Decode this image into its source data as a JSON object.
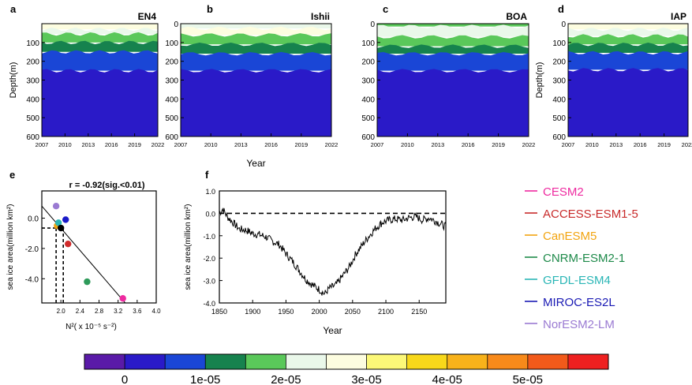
{
  "chart_data": [
    {
      "panel": "a",
      "type": "heatmap",
      "title": "EN4",
      "ylabel": "Depth(m)",
      "xlabel": "",
      "x_ticks": [
        "2007",
        "2010",
        "2013",
        "2016",
        "2019",
        "2022"
      ],
      "y_ticks": [
        "100",
        "200",
        "300",
        "400",
        "500",
        "600"
      ],
      "xlim": [
        2007,
        2022
      ],
      "ylim": [
        0,
        600
      ],
      "layers": [
        {
          "top": 0,
          "bottom": 30,
          "value": 2.5e-05
        },
        {
          "top": 30,
          "bottom": 55,
          "value": 2.2e-05
        },
        {
          "top": 55,
          "bottom": 100,
          "value": 1.8e-05
        },
        {
          "top": 100,
          "bottom": 150,
          "value": 1.2e-05
        },
        {
          "top": 150,
          "bottom": 250,
          "value": 8e-06
        },
        {
          "top": 250,
          "bottom": 600,
          "value": 4e-06
        }
      ]
    },
    {
      "panel": "b",
      "type": "heatmap",
      "title": "Ishii",
      "ylabel": "",
      "xlabel": "Year",
      "x_ticks": [
        "2007",
        "2010",
        "2013",
        "2016",
        "2019",
        "2022"
      ],
      "y_ticks": [
        "0",
        "100",
        "200",
        "300",
        "400",
        "500",
        "600"
      ],
      "xlim": [
        2007,
        2022
      ],
      "ylim": [
        0,
        600
      ],
      "layers": [
        {
          "top": 0,
          "bottom": 25,
          "value": 2.2e-05
        },
        {
          "top": 25,
          "bottom": 60,
          "value": 2.5e-05
        },
        {
          "top": 60,
          "bottom": 110,
          "value": 1.8e-05
        },
        {
          "top": 110,
          "bottom": 160,
          "value": 1.2e-05
        },
        {
          "top": 160,
          "bottom": 250,
          "value": 8e-06
        },
        {
          "top": 250,
          "bottom": 600,
          "value": 4e-06
        }
      ]
    },
    {
      "panel": "c",
      "type": "heatmap",
      "title": "BOA",
      "ylabel": "",
      "xlabel": "",
      "x_ticks": [
        "2007",
        "2010",
        "2013",
        "2016",
        "2019",
        "2022"
      ],
      "y_ticks": [
        "0",
        "100",
        "200",
        "300",
        "400",
        "500",
        "600"
      ],
      "xlim": [
        2007,
        2022
      ],
      "ylim": [
        0,
        600
      ],
      "layers": [
        {
          "top": 0,
          "bottom": 15,
          "value": 1.8e-05
        },
        {
          "top": 15,
          "bottom": 70,
          "value": 2.2e-05
        },
        {
          "top": 70,
          "bottom": 120,
          "value": 1.8e-05
        },
        {
          "top": 120,
          "bottom": 160,
          "value": 1.2e-05
        },
        {
          "top": 160,
          "bottom": 250,
          "value": 8e-06
        },
        {
          "top": 250,
          "bottom": 600,
          "value": 4e-06
        }
      ]
    },
    {
      "panel": "d",
      "type": "heatmap",
      "title": "IAP",
      "ylabel": "Depth(m)",
      "xlabel": "",
      "x_ticks": [
        "2007",
        "2010",
        "2013",
        "2016",
        "2019",
        "2022"
      ],
      "y_ticks": [
        "0",
        "100",
        "200",
        "300",
        "400",
        "500",
        "600"
      ],
      "xlim": [
        2007,
        2022
      ],
      "ylim": [
        0,
        600
      ],
      "layers": [
        {
          "top": 0,
          "bottom": 30,
          "value": 2.6e-05
        },
        {
          "top": 30,
          "bottom": 65,
          "value": 2.2e-05
        },
        {
          "top": 65,
          "bottom": 110,
          "value": 1.8e-05
        },
        {
          "top": 110,
          "bottom": 155,
          "value": 1.2e-05
        },
        {
          "top": 155,
          "bottom": 245,
          "value": 8e-06
        },
        {
          "top": 245,
          "bottom": 600,
          "value": 4e-06
        }
      ]
    },
    {
      "panel": "e",
      "type": "scatter",
      "title": "r = -0.92(sig.<0.01)",
      "xlabel": "N²( x 10⁻⁵ s⁻²)",
      "ylabel": "sea ice area(million km²)",
      "x_ticks": [
        "2.0",
        "2.4",
        "2.8",
        "3.2",
        "3.6",
        "4.0"
      ],
      "y_ticks": [
        "0.0",
        "-2.0",
        "-4.0"
      ],
      "xlim": [
        1.6,
        4.0
      ],
      "ylim": [
        -5.6,
        1.8
      ],
      "points": [
        {
          "x": 3.3,
          "y": -5.3,
          "color": "#ee2aa0"
        },
        {
          "x": 2.15,
          "y": -1.7,
          "color": "#d12a2a"
        },
        {
          "x": 1.92,
          "y": -0.5,
          "color": "#f2a410"
        },
        {
          "x": 2.55,
          "y": -4.2,
          "color": "#2e9a5a"
        },
        {
          "x": 1.95,
          "y": -0.3,
          "color": "#2ab6b6"
        },
        {
          "x": 2.1,
          "y": -0.1,
          "color": "#1a1ac8"
        },
        {
          "x": 1.9,
          "y": 0.8,
          "color": "#9a7ad2"
        },
        {
          "x": 2.0,
          "y": -0.65,
          "color": "#000000"
        }
      ],
      "fit_line": [
        [
          1.6,
          0.8
        ],
        [
          3.35,
          -5.6
        ]
      ],
      "obs_lines_x": [
        1.9,
        2.05
      ],
      "obs_line_y": -0.65
    },
    {
      "panel": "f",
      "type": "line",
      "title": "",
      "xlabel": "Year",
      "ylabel": "sea ice area(million km²)",
      "x_ticks": [
        "1850",
        "1900",
        "1950",
        "2000",
        "2050",
        "2100",
        "2150"
      ],
      "y_ticks": [
        "1.0",
        "0.0",
        "-1.0",
        "-2.0",
        "-3.0",
        "-4.0"
      ],
      "xlim": [
        1850,
        2190
      ],
      "ylim": [
        -4.0,
        1.0
      ],
      "key_points": [
        [
          1850,
          0.0
        ],
        [
          1855,
          0.2
        ],
        [
          1862,
          -0.15
        ],
        [
          1870,
          -0.4
        ],
        [
          1880,
          -0.7
        ],
        [
          1890,
          -0.75
        ],
        [
          1900,
          -0.9
        ],
        [
          1910,
          -0.95
        ],
        [
          1920,
          -1.05
        ],
        [
          1930,
          -1.25
        ],
        [
          1940,
          -1.4
        ],
        [
          1950,
          -1.8
        ],
        [
          1960,
          -2.15
        ],
        [
          1970,
          -2.55
        ],
        [
          1980,
          -2.95
        ],
        [
          1990,
          -3.2
        ],
        [
          2000,
          -3.4
        ],
        [
          2008,
          -3.6
        ],
        [
          2015,
          -3.35
        ],
        [
          2025,
          -3.2
        ],
        [
          2035,
          -2.8
        ],
        [
          2045,
          -2.4
        ],
        [
          2055,
          -1.8
        ],
        [
          2065,
          -1.4
        ],
        [
          2075,
          -1.0
        ],
        [
          2085,
          -0.65
        ],
        [
          2095,
          -0.4
        ],
        [
          2105,
          -0.3
        ],
        [
          2115,
          -0.25
        ],
        [
          2125,
          -0.3
        ],
        [
          2135,
          -0.2
        ],
        [
          2145,
          -0.15
        ],
        [
          2155,
          -0.3
        ],
        [
          2165,
          -0.2
        ],
        [
          2175,
          -0.35
        ],
        [
          2190,
          -0.6
        ]
      ],
      "reference_y": 0.0
    }
  ],
  "panel_labels": {
    "a": "a",
    "b": "b",
    "c": "c",
    "d": "d",
    "e": "e",
    "f": "f"
  },
  "legend": {
    "entries": [
      {
        "name": "CESM2",
        "color": "#ee2aa0"
      },
      {
        "name": "ACCESS-ESM1-5",
        "color": "#c82a2a"
      },
      {
        "name": "CanESM5",
        "color": "#f2a410"
      },
      {
        "name": "CNRM-ESM2-1",
        "color": "#1e8a4a"
      },
      {
        "name": "GFDL-ESM4",
        "color": "#2ab6b6"
      },
      {
        "name": "MIROC-ES2L",
        "color": "#1a1ab4"
      },
      {
        "name": "NorESM2-LM",
        "color": "#9a7ad2"
      }
    ]
  },
  "colorbar": {
    "colors": [
      "#5a1aa8",
      "#2a1ac8",
      "#1a46d6",
      "#16824e",
      "#5ac85a",
      "#eaf8ea",
      "#fdfde0",
      "#fcf878",
      "#f8d81a",
      "#f8b21a",
      "#f88a1a",
      "#f25a1a",
      "#ee2020"
    ],
    "labels": [
      "0",
      "1e-05",
      "2e-05",
      "3e-05",
      "4e-05",
      "5e-05"
    ]
  }
}
